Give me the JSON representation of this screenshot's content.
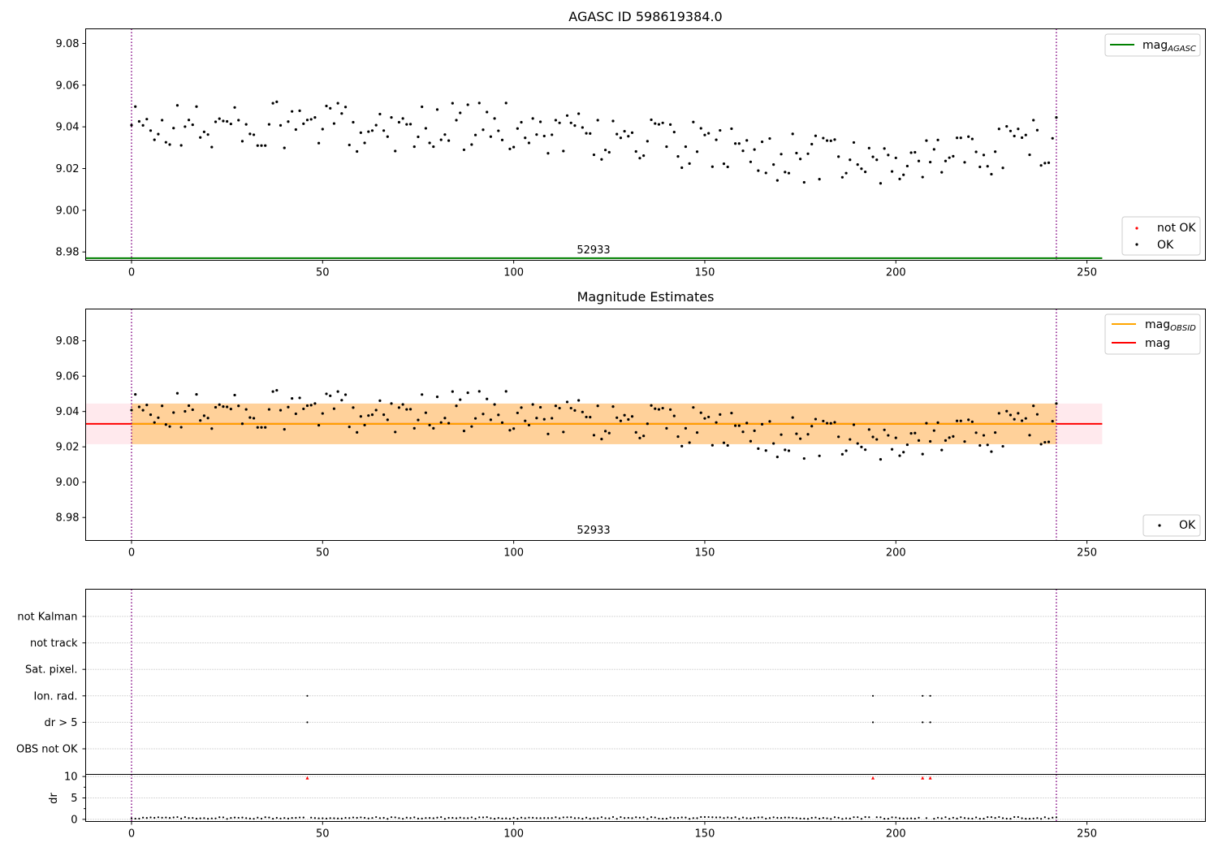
{
  "chart_data": [
    {
      "type": "scatter",
      "title": "AGASC ID 598619384.0",
      "annotation": "52933",
      "xlim": [
        -12,
        281
      ],
      "ylim": [
        8.976,
        9.087
      ],
      "xticks": [
        0,
        50,
        100,
        150,
        200,
        250
      ],
      "yticks": [
        8.98,
        9.0,
        9.02,
        9.04,
        9.06,
        9.08
      ],
      "ytick_labels": [
        "8.98",
        "9.00",
        "9.02",
        "9.04",
        "9.06",
        "9.08"
      ],
      "grid": false,
      "vlines": [
        0,
        242
      ],
      "hlines": [
        {
          "name": "mag$_{AGASC}$",
          "value": 8.977,
          "x_range": [
            -12,
            254
          ],
          "color": "#008000"
        }
      ],
      "legends": [
        {
          "placement": "upper-right",
          "entries": [
            {
              "label_main": "mag",
              "label_sub": "AGASC",
              "kind": "line",
              "color": "#008000"
            }
          ]
        },
        {
          "placement": "lower-right",
          "entries": [
            {
              "label_main": "not OK",
              "label_sub": "",
              "kind": "dot",
              "color": "#ff0000"
            },
            {
              "label_main": "OK",
              "label_sub": "",
              "kind": "dot",
              "color": "#000000"
            }
          ]
        }
      ]
    },
    {
      "type": "scatter",
      "title": "Magnitude Estimates",
      "annotation": "52933",
      "xlim": [
        -12,
        281
      ],
      "ylim": [
        8.967,
        9.098
      ],
      "xticks": [
        0,
        50,
        100,
        150,
        200,
        250
      ],
      "yticks": [
        8.98,
        9.0,
        9.02,
        9.04,
        9.06,
        9.08
      ],
      "ytick_labels": [
        "8.98",
        "9.00",
        "9.02",
        "9.04",
        "9.06",
        "9.08"
      ],
      "grid": false,
      "vlines": [
        0,
        242
      ],
      "bands": [
        {
          "name": "mag range",
          "y0": 9.0215,
          "y1": 9.0445,
          "x_range": [
            -12,
            254
          ],
          "color": "#ffc0cb"
        },
        {
          "name": "mag$_{OBSID}$ range",
          "y0": 9.0215,
          "y1": 9.0445,
          "x_range": [
            0,
            242
          ],
          "color": "#ffa500"
        }
      ],
      "hlines": [
        {
          "name": "mag",
          "value": 9.033,
          "x_range": [
            -12,
            254
          ],
          "color": "#ff0000"
        },
        {
          "name": "mag$_{OBSID}$",
          "value": 9.033,
          "x_range": [
            0,
            242
          ],
          "color": "#ffa500"
        }
      ],
      "legends": [
        {
          "placement": "upper-right",
          "entries": [
            {
              "label_main": "mag",
              "label_sub": "OBSID",
              "kind": "line",
              "color": "#ffa500"
            },
            {
              "label_main": "mag",
              "label_sub": "",
              "kind": "line",
              "color": "#ff0000"
            }
          ]
        },
        {
          "placement": "lower-right",
          "entries": [
            {
              "label_main": "OK",
              "label_sub": "",
              "kind": "dot",
              "color": "#000000"
            }
          ]
        }
      ]
    },
    {
      "type": "scatter",
      "title": "",
      "xlim": [
        -12,
        281
      ],
      "xticks": [
        0,
        50,
        100,
        150,
        200,
        250
      ],
      "vlines": [
        0,
        242
      ],
      "flag_rows": [
        "not Kalman",
        "not track",
        "Sat. pixel.",
        "Ion. rad.",
        "dr > 5",
        "OBS not OK"
      ],
      "flags": {
        "not Kalman": [],
        "not track": [],
        "Sat. pixel.": [],
        "Ion. rad.": [
          46,
          194,
          207,
          209
        ],
        "dr > 5": [
          46,
          194,
          207,
          209
        ],
        "OBS not OK": []
      },
      "dr": {
        "ylabel": "dr",
        "ylim": [
          -0.5,
          10.5
        ],
        "yticks": [
          0,
          5,
          10
        ],
        "ytick_labels": [
          "0",
          "5",
          "10"
        ],
        "clipped_points": [
          46,
          194,
          207,
          209
        ]
      }
    }
  ]
}
